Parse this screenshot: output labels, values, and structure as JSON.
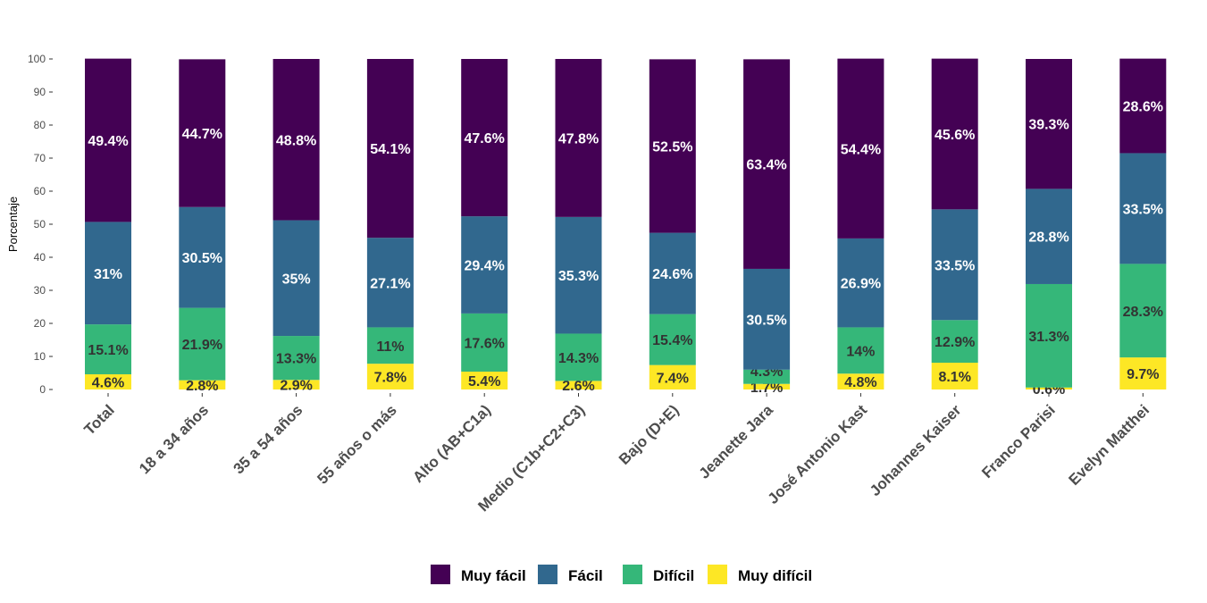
{
  "chart_data": {
    "type": "bar",
    "stacked": true,
    "ylabel": "Porcentaje",
    "xlabel": "",
    "ylim": [
      0,
      100
    ],
    "yticks": [
      0,
      10,
      20,
      30,
      40,
      50,
      60,
      70,
      80,
      90,
      100
    ],
    "grid": false,
    "legend_position": "bottom",
    "categories": [
      "Total",
      "18 a 34 años",
      "35 a 54 años",
      "55 años o más",
      "Alto (AB+C1a)",
      "Medio (C1b+C2+C3)",
      "Bajo (D+E)",
      "Jeanette Jara",
      "José Antonio Kast",
      "Johannes Kaiser",
      "Franco Parisi",
      "Evelyn Matthei"
    ],
    "series": [
      {
        "name": "Muy difícil",
        "color": "#FDE725",
        "label_color": "#333333",
        "values": [
          4.6,
          2.8,
          2.9,
          7.8,
          5.4,
          2.6,
          7.4,
          1.7,
          4.8,
          8.1,
          0.6,
          9.7
        ]
      },
      {
        "name": "Difícil",
        "color": "#35B779",
        "label_color": "#333333",
        "values": [
          15.1,
          21.9,
          13.3,
          11,
          17.6,
          14.3,
          15.4,
          4.3,
          14,
          12.9,
          31.3,
          28.3
        ]
      },
      {
        "name": "Fácil",
        "color": "#31688E",
        "label_color": "#ffffff",
        "values": [
          31,
          30.5,
          35,
          27.1,
          29.4,
          35.3,
          24.6,
          30.5,
          26.9,
          33.5,
          28.8,
          33.5
        ]
      },
      {
        "name": "Muy fácil",
        "color": "#440154",
        "label_color": "#ffffff",
        "values": [
          49.4,
          44.7,
          48.8,
          54.1,
          47.6,
          47.8,
          52.5,
          63.4,
          54.4,
          45.6,
          39.3,
          28.6
        ]
      }
    ],
    "legend_order": [
      "Muy fácil",
      "Fácil",
      "Difícil",
      "Muy difícil"
    ]
  }
}
